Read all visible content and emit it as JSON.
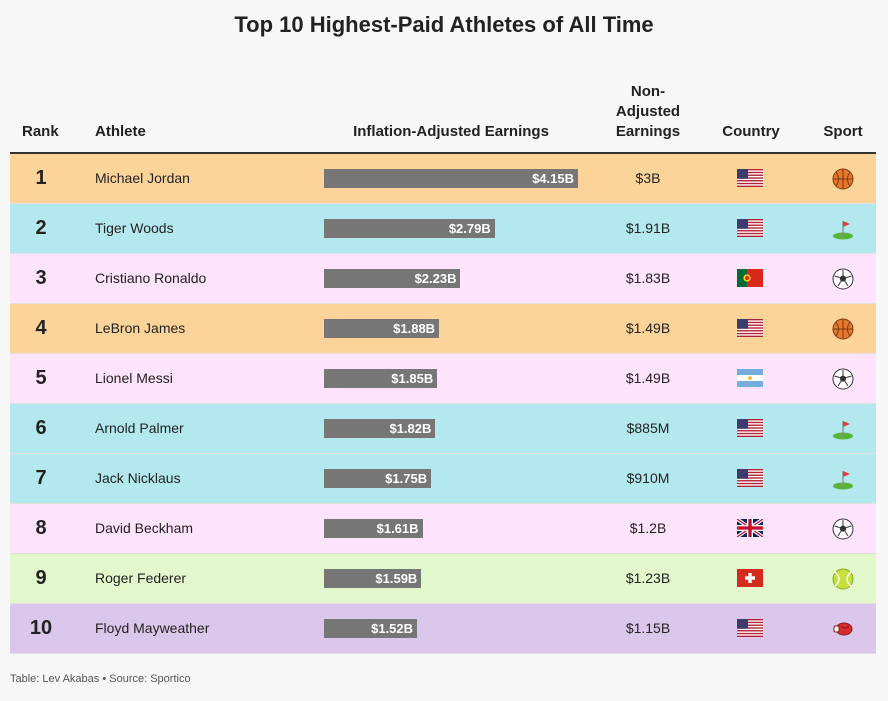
{
  "title": "Top 10 Highest-Paid Athletes of All Time",
  "headers": {
    "rank": "Rank",
    "athlete": "Athlete",
    "inflation_adjusted": "Inflation-Adjusted Earnings",
    "non_adjusted": [
      "Non-",
      "Adjusted",
      "Earnings"
    ],
    "country": "Country",
    "sport": "Sport"
  },
  "colors": {
    "basketball": "#fcd49a",
    "golf": "#b3e9ee",
    "soccer": "#fde3fb",
    "tennis": "#e2f7cc",
    "boxing": "#dbc7ec",
    "bar": "#767676"
  },
  "rows": [
    {
      "rank": "1",
      "athlete": "Michael Jordan",
      "adjusted_label": "$4.15B",
      "non_adjusted": "$3B",
      "country": "United States",
      "flag": "us-flag",
      "sport": "basketball"
    },
    {
      "rank": "2",
      "athlete": "Tiger Woods",
      "adjusted_label": "$2.79B",
      "non_adjusted": "$1.91B",
      "country": "United States",
      "flag": "us-flag",
      "sport": "golf"
    },
    {
      "rank": "3",
      "athlete": "Cristiano Ronaldo",
      "adjusted_label": "$2.23B",
      "non_adjusted": "$1.83B",
      "country": "Portugal",
      "flag": "portugal-flag",
      "sport": "soccer"
    },
    {
      "rank": "4",
      "athlete": "LeBron James",
      "adjusted_label": "$1.88B",
      "non_adjusted": "$1.49B",
      "country": "United States",
      "flag": "us-flag",
      "sport": "basketball"
    },
    {
      "rank": "5",
      "athlete": "Lionel Messi",
      "adjusted_label": "$1.85B",
      "non_adjusted": "$1.49B",
      "country": "Argentina",
      "flag": "argentina-flag",
      "sport": "soccer"
    },
    {
      "rank": "6",
      "athlete": "Arnold Palmer",
      "adjusted_label": "$1.82B",
      "non_adjusted": "$885M",
      "country": "United States",
      "flag": "us-flag",
      "sport": "golf"
    },
    {
      "rank": "7",
      "athlete": "Jack Nicklaus",
      "adjusted_label": "$1.75B",
      "non_adjusted": "$910M",
      "country": "United States",
      "flag": "us-flag",
      "sport": "golf"
    },
    {
      "rank": "8",
      "athlete": "David Beckham",
      "adjusted_label": "$1.61B",
      "non_adjusted": "$1.2B",
      "country": "United Kingdom",
      "flag": "uk-flag",
      "sport": "soccer"
    },
    {
      "rank": "9",
      "athlete": "Roger Federer",
      "adjusted_label": "$1.59B",
      "non_adjusted": "$1.23B",
      "country": "Switzerland",
      "flag": "switzerland-flag",
      "sport": "tennis"
    },
    {
      "rank": "10",
      "athlete": "Floyd Mayweather",
      "adjusted_label": "$1.52B",
      "non_adjusted": "$1.15B",
      "country": "United States",
      "flag": "us-flag",
      "sport": "boxing"
    }
  ],
  "chart_data": {
    "type": "table",
    "categories": [
      "Michael Jordan",
      "Tiger Woods",
      "Cristiano Ronaldo",
      "LeBron James",
      "Lionel Messi",
      "Arnold Palmer",
      "Jack Nicklaus",
      "David Beckham",
      "Roger Federer",
      "Floyd Mayweather"
    ],
    "series": [
      {
        "name": "Inflation-Adjusted Earnings",
        "values": [
          4.15,
          2.79,
          2.23,
          1.88,
          1.85,
          1.82,
          1.75,
          1.61,
          1.59,
          1.52
        ]
      },
      {
        "name": "Non-Adjusted Earnings",
        "values": [
          3.0,
          1.91,
          1.83,
          1.49,
          1.49,
          0.885,
          0.91,
          1.2,
          1.23,
          1.15
        ]
      }
    ],
    "title": "Top 10 Highest-Paid Athletes of All Time",
    "bar_max": 4.15
  },
  "footer": "Table: Lev Akabas • Source: Sportico"
}
